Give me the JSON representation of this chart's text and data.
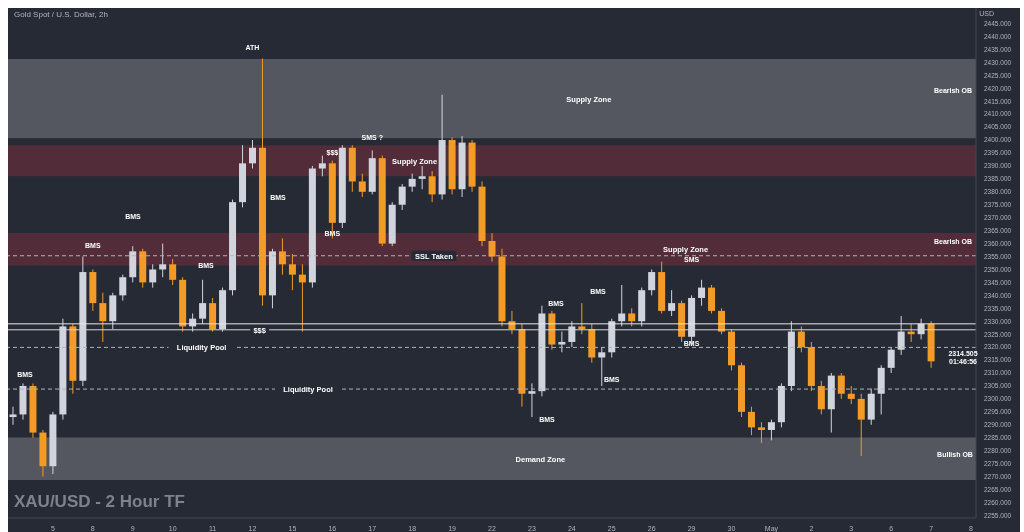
{
  "chart_data": {
    "type": "candlestick",
    "title": "XAU/USD - 2 Hour TF",
    "subtitle": "Gold Spot / U.S. Dollar, 2h",
    "ylabel": "USD",
    "categories": [
      null,
      null,
      null,
      null,
      "5",
      null,
      null,
      null,
      "8",
      null,
      null,
      null,
      "9",
      null,
      null,
      null,
      "10",
      null,
      null,
      null,
      "11",
      null,
      null,
      null,
      "12",
      null,
      null,
      null,
      "15",
      null,
      null,
      null,
      "16",
      null,
      null,
      null,
      "17",
      null,
      null,
      null,
      "18",
      null,
      null,
      null,
      "19",
      null,
      null,
      null,
      "22",
      null,
      null,
      null,
      "23",
      null,
      null,
      null,
      "24",
      null,
      null,
      null,
      "25",
      null,
      null,
      null,
      "26",
      null,
      null,
      null,
      "29",
      null,
      null,
      null,
      "30",
      null,
      null,
      null,
      "May",
      null,
      null,
      null,
      "2",
      null,
      null,
      null,
      "3",
      null,
      null,
      null,
      "6",
      null,
      null,
      null,
      "7",
      null,
      null,
      null,
      "8"
    ],
    "ohlc": [
      [
        2293,
        2297,
        2290,
        2294
      ],
      [
        2294,
        2306,
        2292,
        2305
      ],
      [
        2305,
        2306,
        2285,
        2287
      ],
      [
        2287,
        2288,
        2270,
        2274
      ],
      [
        2274,
        2295,
        2271,
        2294
      ],
      [
        2294,
        2331,
        2292,
        2328
      ],
      [
        2328,
        2329,
        2302,
        2307
      ],
      [
        2307,
        2355,
        2305,
        2349
      ],
      [
        2349,
        2350,
        2334,
        2337
      ],
      [
        2337,
        2341,
        2322,
        2330
      ],
      [
        2330,
        2341,
        2327,
        2340
      ],
      [
        2340,
        2348,
        2338,
        2347
      ],
      [
        2347,
        2359,
        2345,
        2357
      ],
      [
        2357,
        2358,
        2343,
        2345
      ],
      [
        2345,
        2352,
        2343,
        2350
      ],
      [
        2350,
        2360,
        2347,
        2352
      ],
      [
        2352,
        2354,
        2344,
        2346
      ],
      [
        2346,
        2347,
        2326,
        2328
      ],
      [
        2328,
        2333,
        2326,
        2331
      ],
      [
        2331,
        2346,
        2329,
        2337
      ],
      [
        2337,
        2339,
        2326,
        2327
      ],
      [
        2327,
        2343,
        2326,
        2342
      ],
      [
        2342,
        2377,
        2340,
        2376
      ],
      [
        2376,
        2398,
        2374,
        2391
      ],
      [
        2391,
        2400,
        2389,
        2397
      ],
      [
        2397,
        2431.5,
        2336,
        2340
      ],
      [
        2340,
        2358,
        2335,
        2357
      ],
      [
        2357,
        2362,
        2348,
        2352
      ],
      [
        2352,
        2356,
        2342,
        2348
      ],
      [
        2348,
        2352,
        2326,
        2345
      ],
      [
        2345,
        2390,
        2343,
        2389
      ],
      [
        2389,
        2394,
        2386,
        2391
      ],
      [
        2391,
        2392,
        2362,
        2368
      ],
      [
        2368,
        2398,
        2366,
        2397
      ],
      [
        2397,
        2398,
        2380,
        2384
      ],
      [
        2384,
        2387,
        2378,
        2380
      ],
      [
        2380,
        2396,
        2379,
        2393
      ],
      [
        2393,
        2394,
        2359,
        2360
      ],
      [
        2360,
        2376,
        2359,
        2375
      ],
      [
        2375,
        2383,
        2373,
        2382
      ],
      [
        2382,
        2387,
        2380,
        2385
      ],
      [
        2385,
        2390,
        2381,
        2386
      ],
      [
        2386,
        2388,
        2376,
        2379
      ],
      [
        2379,
        2417.5,
        2377,
        2400
      ],
      [
        2400,
        2401,
        2379,
        2381
      ],
      [
        2381,
        2401.5,
        2378,
        2399
      ],
      [
        2399,
        2400,
        2380,
        2382
      ],
      [
        2382,
        2384,
        2359,
        2361
      ],
      [
        2361,
        2364,
        2353,
        2355
      ],
      [
        2355,
        2358,
        2328,
        2330
      ],
      [
        2330,
        2334,
        2325,
        2327
      ],
      [
        2327,
        2329,
        2297,
        2302
      ],
      [
        2302,
        2306,
        2293,
        2303
      ],
      [
        2303,
        2336,
        2301,
        2333
      ],
      [
        2333,
        2334,
        2319,
        2321
      ],
      [
        2321,
        2326,
        2318,
        2322
      ],
      [
        2322,
        2330,
        2320,
        2328
      ],
      [
        2328,
        2337,
        2325,
        2327
      ],
      [
        2327,
        2329,
        2314,
        2316
      ],
      [
        2316,
        2320,
        2305,
        2318
      ],
      [
        2318,
        2331,
        2316,
        2330
      ],
      [
        2330,
        2344,
        2328,
        2333
      ],
      [
        2333,
        2335,
        2328,
        2330
      ],
      [
        2330,
        2343,
        2328,
        2342
      ],
      [
        2342,
        2350,
        2340,
        2349
      ],
      [
        2349,
        2353,
        2333,
        2334
      ],
      [
        2334,
        2342,
        2332,
        2337
      ],
      [
        2337,
        2338,
        2322,
        2324
      ],
      [
        2324,
        2340,
        2321,
        2339
      ],
      [
        2339,
        2346,
        2336,
        2343
      ],
      [
        2343,
        2344,
        2333,
        2334
      ],
      [
        2334,
        2335,
        2325,
        2326
      ],
      [
        2326,
        2327,
        2311,
        2313
      ],
      [
        2313,
        2314,
        2293,
        2295
      ],
      [
        2295,
        2297,
        2286,
        2289
      ],
      [
        2289,
        2291,
        2283,
        2288
      ],
      [
        2288,
        2292,
        2284,
        2291
      ],
      [
        2291,
        2306,
        2289,
        2305
      ],
      [
        2305,
        2330,
        2303,
        2326
      ],
      [
        2326,
        2328,
        2318,
        2320
      ],
      [
        2320,
        2322,
        2303,
        2305
      ],
      [
        2305,
        2307,
        2294,
        2296
      ],
      [
        2296,
        2310,
        2287,
        2309
      ],
      [
        2309,
        2310,
        2300,
        2302
      ],
      [
        2302,
        2305,
        2298,
        2300
      ],
      [
        2300,
        2302,
        2278,
        2292
      ],
      [
        2292,
        2304,
        2290,
        2302
      ],
      [
        2302,
        2313,
        2294,
        2312
      ],
      [
        2312,
        2320,
        2310,
        2319
      ],
      [
        2319,
        2332,
        2317,
        2326
      ],
      [
        2326,
        2329,
        2322,
        2325
      ],
      [
        2325,
        2331,
        2323,
        2329
      ],
      [
        2329,
        2330,
        2312,
        2314.505
      ],
      null,
      null,
      null,
      null
    ],
    "colors": [
      "#d1d4dc",
      "#d1d4dc",
      "#f29b26",
      "#f29b26",
      "#d1d4dc",
      "#d1d4dc",
      "#f29b26",
      "#d1d4dc",
      "#f29b26",
      "#f29b26",
      "#d1d4dc",
      "#d1d4dc",
      "#d1d4dc",
      "#f29b26",
      "#d1d4dc",
      "#d1d4dc",
      "#f29b26",
      "#f29b26",
      "#d1d4dc",
      "#d1d4dc",
      "#f29b26",
      "#d1d4dc",
      "#d1d4dc",
      "#d1d4dc",
      "#d1d4dc",
      "#f29b26",
      "#d1d4dc",
      "#f29b26",
      "#f29b26",
      "#f29b26",
      "#d1d4dc",
      "#d1d4dc",
      "#f29b26",
      "#d1d4dc",
      "#f29b26",
      "#f29b26",
      "#d1d4dc",
      "#f29b26",
      "#d1d4dc",
      "#d1d4dc",
      "#d1d4dc",
      "#d1d4dc",
      "#f29b26",
      "#d1d4dc",
      "#f29b26",
      "#d1d4dc",
      "#f29b26",
      "#f29b26",
      "#f29b26",
      "#f29b26",
      "#f29b26",
      "#f29b26",
      "#d1d4dc",
      "#d1d4dc",
      "#f29b26",
      "#d1d4dc",
      "#d1d4dc",
      "#f29b26",
      "#f29b26",
      "#d1d4dc",
      "#d1d4dc",
      "#d1d4dc",
      "#f29b26",
      "#d1d4dc",
      "#d1d4dc",
      "#f29b26",
      "#d1d4dc",
      "#f29b26",
      "#d1d4dc",
      "#d1d4dc",
      "#f29b26",
      "#f29b26",
      "#f29b26",
      "#f29b26",
      "#f29b26",
      "#f29b26",
      "#d1d4dc",
      "#d1d4dc",
      "#d1d4dc",
      "#f29b26",
      "#f29b26",
      "#f29b26",
      "#d1d4dc",
      "#f29b26",
      "#f29b26",
      "#f29b26",
      "#d1d4dc",
      "#d1d4dc",
      "#d1d4dc",
      "#d1d4dc",
      "#f29b26",
      "#d1d4dc",
      "#f29b26",
      null,
      null,
      null,
      null
    ],
    "ylim": [
      2254,
      2451
    ],
    "yticks": [
      {
        "value": 2255,
        "label": "2255.000"
      },
      {
        "value": 2260,
        "label": "2260.000"
      },
      {
        "value": 2265,
        "label": "2265.000"
      },
      {
        "value": 2270,
        "label": "2270.000"
      },
      {
        "value": 2275,
        "label": "2275.000"
      },
      {
        "value": 2280,
        "label": "2280.000"
      },
      {
        "value": 2285,
        "label": "2285.000"
      },
      {
        "value": 2290,
        "label": "2290.000"
      },
      {
        "value": 2295,
        "label": "2295.000"
      },
      {
        "value": 2300,
        "label": "2300.000"
      },
      {
        "value": 2305,
        "label": "2305.000"
      },
      {
        "value": 2310,
        "label": "2310.000"
      },
      {
        "value": 2315,
        "label": "2315.000"
      },
      {
        "value": 2320,
        "label": "2320.000"
      },
      {
        "value": 2325,
        "label": "2325.000"
      },
      {
        "value": 2330,
        "label": "2330.000"
      },
      {
        "value": 2335,
        "label": "2335.000"
      },
      {
        "value": 2340,
        "label": "2340.000"
      },
      {
        "value": 2345,
        "label": "2345.000"
      },
      {
        "value": 2350,
        "label": "2350.000"
      },
      {
        "value": 2355,
        "label": "2355.000"
      },
      {
        "value": 2360,
        "label": "2360.000"
      },
      {
        "value": 2365,
        "label": "2365.000"
      },
      {
        "value": 2370,
        "label": "2370.000"
      },
      {
        "value": 2375,
        "label": "2375.000"
      },
      {
        "value": 2380,
        "label": "2380.000"
      },
      {
        "value": 2385,
        "label": "2385.000"
      },
      {
        "value": 2390,
        "label": "2390.000"
      },
      {
        "value": 2395,
        "label": "2395.000"
      },
      {
        "value": 2400,
        "label": "2400.000"
      },
      {
        "value": 2405,
        "label": "2405.000"
      },
      {
        "value": 2410,
        "label": "2410.000"
      },
      {
        "value": 2415,
        "label": "2415.000"
      },
      {
        "value": 2420,
        "label": "2420.000"
      },
      {
        "value": 2425,
        "label": "2425.000"
      },
      {
        "value": 2430,
        "label": "2430.000"
      },
      {
        "value": 2435,
        "label": "2435.000"
      },
      {
        "value": 2440,
        "label": "2440.000"
      },
      {
        "value": 2445,
        "label": "2445.000"
      }
    ],
    "bands": [
      {
        "axis": "y",
        "from": 2400.7,
        "to": 2431.3,
        "label": "Supply Zone",
        "color": "#5d5f67"
      },
      {
        "axis": "y",
        "from": 2386,
        "to": 2398,
        "label": "Supply Zone",
        "color": "#5a2d3a"
      },
      {
        "axis": "y",
        "from": 2351.5,
        "to": 2364.1,
        "label": "Supply Zone",
        "color": "#5a2d3a"
      },
      {
        "axis": "y",
        "from": 2268.7,
        "to": 2285.1,
        "label": "Demand Zone",
        "color": "#5d5f67"
      }
    ],
    "ref_lines": [
      {
        "axis": "y",
        "value": 2355.3,
        "label": "SSL Taken",
        "color": "#b0b3ba",
        "line_style": "dashed"
      },
      {
        "axis": "y",
        "value": 2319.9,
        "label": "Liquidity Pool",
        "color": "#b0b3ba",
        "line_style": "dashed"
      },
      {
        "axis": "y",
        "value": 2303.8,
        "label": "Liquidity Pool",
        "color": "#b0b3ba",
        "line_style": "dashed"
      },
      {
        "axis": "y",
        "value": 2326.7,
        "label": "$$$",
        "color": "#d1d4dc",
        "line_style": "solid"
      },
      {
        "axis": "y",
        "value": 2329,
        "color": "#e8e8e8",
        "line_style": "solid"
      }
    ],
    "annotations": [
      {
        "text": "ATH",
        "x": "12",
        "y": 2433
      },
      "BMS",
      {
        "text": "BMS",
        "x": "8",
        "y": 2356.5
      },
      "BMS",
      "BMS",
      "BMS",
      {
        "text": "BMS",
        "x": "16",
        "y": 2361
      },
      {
        "text": "$$$",
        "x": "16",
        "y": 2392.3
      },
      {
        "text": "SMS ?",
        "x": "17",
        "y": 2398
      },
      "BMS",
      "BMS",
      {
        "text": "BMS",
        "x": "25",
        "y": 2304.6
      },
      "BMS",
      {
        "text": "BMS",
        "x": "29",
        "y": 2318.6
      },
      {
        "text": "SMS",
        "x": "29",
        "y": 2351
      },
      "Bearish OB",
      "Bearish OB",
      "Bullish OB",
      "2314.505",
      "01:46:56"
    ]
  }
}
